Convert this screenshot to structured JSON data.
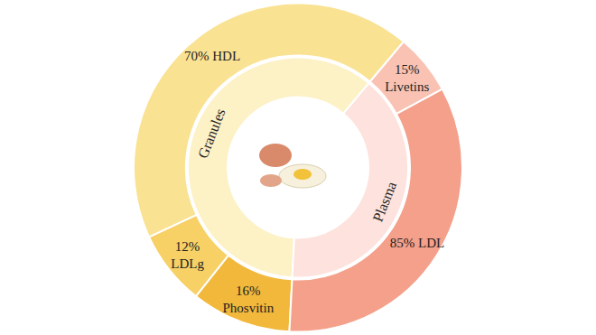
{
  "chart_data": {
    "type": "pie",
    "data_labels": true,
    "series": [
      {
        "name": "Granules",
        "color": "#fdf1c6",
        "categories": [
          "Phosvitin",
          "LDLg",
          "HDL"
        ],
        "values": [
          16,
          12,
          70
        ],
        "value_labels": [
          "16%",
          "12%",
          "70%"
        ],
        "colors": [
          "#f1b83c",
          "#f7d066",
          "#fae293"
        ]
      },
      {
        "name": "Plasma",
        "color": "#fde2dd",
        "categories": [
          "Livetins",
          "LDL"
        ],
        "values": [
          15,
          85
        ],
        "value_labels": [
          "15%",
          "85%"
        ],
        "colors": [
          "#f9c2b2",
          "#f4a08b"
        ]
      }
    ]
  }
}
